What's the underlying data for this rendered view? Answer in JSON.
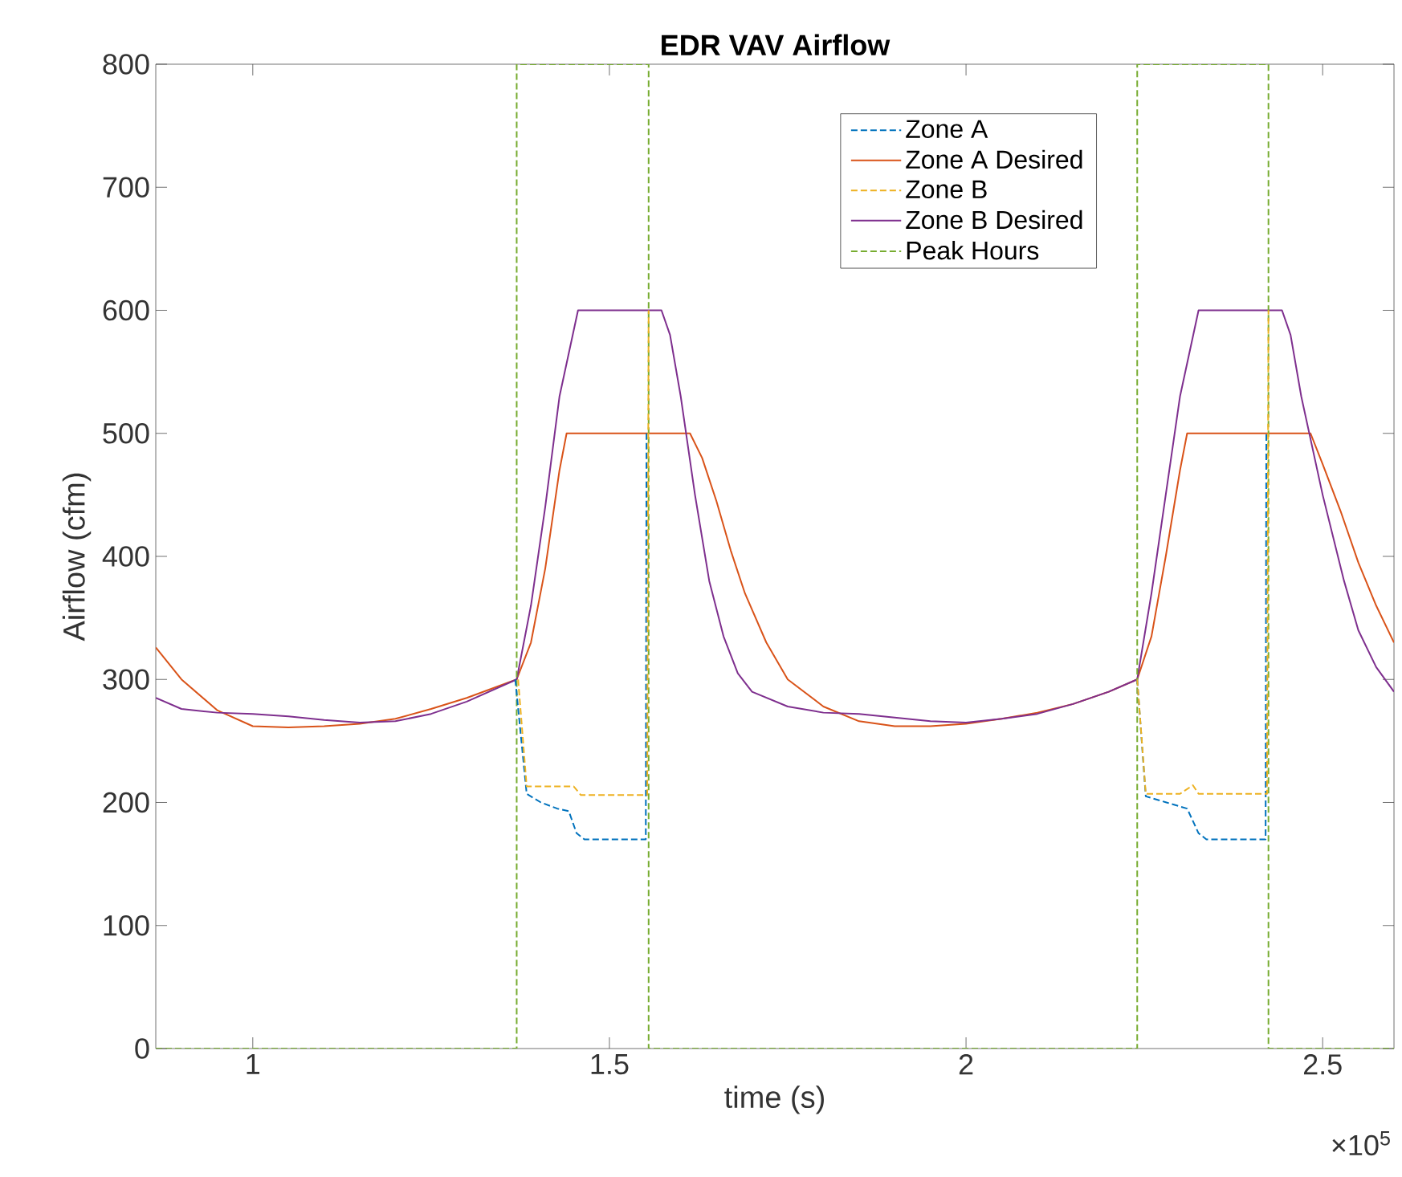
{
  "chart_data": {
    "type": "line",
    "title": "EDR VAV Airflow",
    "xlabel": "time (s)",
    "ylabel": "Airflow (cfm)",
    "annotations": [
      "×10$^{5}$"
    ],
    "xlim": [
      0.864,
      2.6
    ],
    "ylim": [
      0,
      800
    ],
    "xticks": [
      1,
      1.5,
      2,
      2.5
    ],
    "yticks": [
      0,
      100,
      200,
      300,
      400,
      500,
      600,
      700,
      800
    ],
    "grid": false,
    "legend": "top right",
    "series": [
      {
        "name": "Zone A",
        "color": "#0072bd",
        "line_style": "dashed",
        "x": [
          1.368,
          1.384,
          1.404,
          1.427,
          1.443,
          1.454,
          1.465,
          1.551,
          1.552,
          1.9,
          2.24,
          2.252,
          2.281,
          2.31,
          2.326,
          2.337,
          2.42,
          2.421
        ],
        "values": [
          300,
          207,
          200,
          195,
          193,
          175,
          170,
          170,
          500,
          null,
          300,
          205,
          200,
          195,
          175,
          170,
          170,
          500
        ]
      },
      {
        "name": "Zone A Desired",
        "color": "#d95319",
        "line_style": "solid",
        "x": [
          0.864,
          0.9,
          0.95,
          1.0,
          1.05,
          1.1,
          1.15,
          1.2,
          1.25,
          1.3,
          1.37,
          1.39,
          1.41,
          1.43,
          1.44,
          1.613,
          1.63,
          1.65,
          1.67,
          1.69,
          1.72,
          1.75,
          1.8,
          1.85,
          1.9,
          1.95,
          2.0,
          2.05,
          2.1,
          2.15,
          2.2,
          2.24,
          2.26,
          2.28,
          2.3,
          2.31,
          2.483,
          2.5,
          2.525,
          2.55,
          2.575,
          2.6
        ],
        "values": [
          326,
          300,
          275,
          262,
          261,
          262,
          264,
          268,
          276,
          285,
          300,
          330,
          390,
          470,
          500,
          500,
          480,
          445,
          405,
          370,
          330,
          300,
          278,
          266,
          262,
          262,
          264,
          268,
          273,
          280,
          290,
          300,
          335,
          400,
          470,
          500,
          500,
          475,
          437,
          395,
          360,
          330
        ]
      },
      {
        "name": "Zone B",
        "color": "#edb120",
        "line_style": "dashed",
        "x": [
          1.372,
          1.384,
          1.404,
          1.45,
          1.46,
          1.553,
          1.555,
          1.9,
          2.24,
          2.252,
          2.3,
          2.318,
          2.326,
          2.334,
          2.422,
          2.424
        ],
        "values": [
          300,
          213,
          213,
          213,
          206,
          206,
          600,
          null,
          300,
          207,
          207,
          214,
          207,
          207,
          207,
          600
        ]
      },
      {
        "name": "Zone B Desired",
        "color": "#7e2f8e",
        "line_style": "solid",
        "x": [
          0.864,
          0.9,
          0.95,
          1.0,
          1.05,
          1.1,
          1.15,
          1.2,
          1.25,
          1.3,
          1.37,
          1.39,
          1.41,
          1.43,
          1.456,
          1.573,
          1.585,
          1.6,
          1.62,
          1.64,
          1.66,
          1.68,
          1.7,
          1.75,
          1.8,
          1.85,
          1.9,
          1.95,
          2.0,
          2.05,
          2.1,
          2.15,
          2.2,
          2.24,
          2.26,
          2.28,
          2.3,
          2.326,
          2.443,
          2.455,
          2.47,
          2.5,
          2.53,
          2.55,
          2.575,
          2.6
        ],
        "values": [
          285,
          276,
          273,
          272,
          270,
          267,
          265,
          266,
          272,
          282,
          300,
          360,
          440,
          530,
          600,
          600,
          580,
          530,
          450,
          380,
          335,
          305,
          290,
          278,
          273,
          272,
          269,
          266,
          265,
          268,
          272,
          280,
          290,
          300,
          370,
          450,
          530,
          600,
          600,
          580,
          530,
          450,
          380,
          340,
          310,
          290
        ]
      },
      {
        "name": "Peak Hours",
        "color": "#77ac30",
        "line_style": "dashed",
        "x": [
          0.864,
          1.37,
          1.37,
          1.555,
          1.555,
          2.24,
          2.24,
          2.424,
          2.424,
          2.6
        ],
        "values": [
          0,
          0,
          800,
          800,
          0,
          0,
          800,
          800,
          0,
          0
        ]
      }
    ]
  }
}
